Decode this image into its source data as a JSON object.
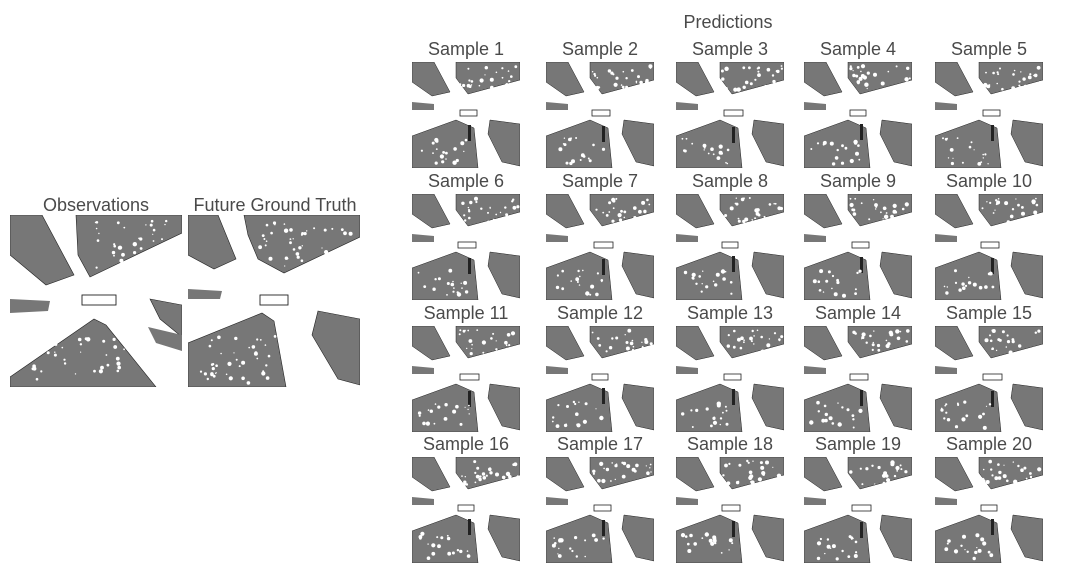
{
  "left": {
    "observations_title": "Observations",
    "ground_truth_title": "Future Ground Truth"
  },
  "predictions": {
    "title": "Predictions",
    "samples": [
      {
        "label": "Sample 1"
      },
      {
        "label": "Sample 2"
      },
      {
        "label": "Sample 3"
      },
      {
        "label": "Sample 4"
      },
      {
        "label": "Sample 5"
      },
      {
        "label": "Sample 6"
      },
      {
        "label": "Sample 7"
      },
      {
        "label": "Sample 8"
      },
      {
        "label": "Sample 9"
      },
      {
        "label": "Sample 10"
      },
      {
        "label": "Sample 11"
      },
      {
        "label": "Sample 12"
      },
      {
        "label": "Sample 13"
      },
      {
        "label": "Sample 14"
      },
      {
        "label": "Sample 15"
      },
      {
        "label": "Sample 16"
      },
      {
        "label": "Sample 17"
      },
      {
        "label": "Sample 18"
      },
      {
        "label": "Sample 19"
      },
      {
        "label": "Sample 20"
      }
    ]
  },
  "colors": {
    "occupied": "#777777",
    "free": "#ffffff",
    "edge": "#222222",
    "text": "#4a4a4a"
  }
}
